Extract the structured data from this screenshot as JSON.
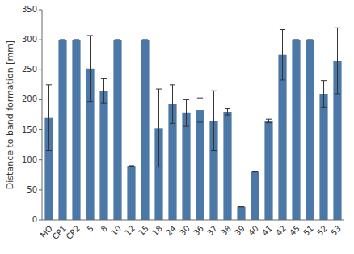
{
  "chart_data": {
    "type": "bar",
    "categories": [
      "MO",
      "CP1",
      "CP2",
      "5",
      "8",
      "10",
      "12",
      "15",
      "18",
      "24",
      "30",
      "36",
      "37",
      "38",
      "39",
      "40",
      "41",
      "42",
      "45",
      "51",
      "52",
      "53"
    ],
    "values": [
      170,
      300,
      300,
      252,
      215,
      300,
      90,
      300,
      153,
      193,
      178,
      183,
      165,
      180,
      22,
      80,
      165,
      275,
      300,
      300,
      210,
      265
    ],
    "errors": [
      55,
      0,
      0,
      55,
      20,
      0,
      0,
      0,
      65,
      32,
      22,
      20,
      50,
      5,
      0,
      0,
      3,
      42,
      0,
      0,
      22,
      55
    ],
    "ylabel": "Distance to band formation [mm]",
    "ylim": [
      0,
      350
    ],
    "yticks": [
      0,
      50,
      100,
      150,
      200,
      250,
      300,
      350
    ],
    "grid": false
  }
}
